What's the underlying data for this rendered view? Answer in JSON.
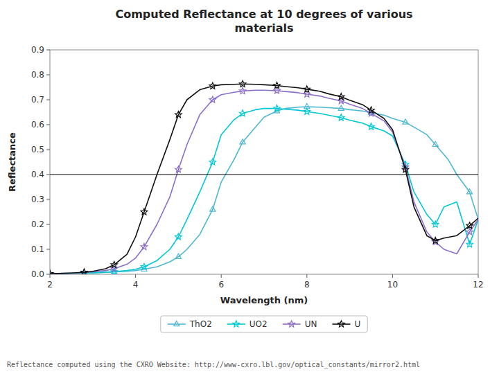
{
  "chart_data": {
    "type": "line",
    "title": "Computed Reflectance at 10 degrees of various\nmaterials",
    "x_label": "Wavelength (nm)",
    "y_label": "Reflectance",
    "xlim": [
      2,
      12
    ],
    "ylim": [
      0,
      0.9
    ],
    "xticks": [
      2,
      4,
      6,
      8,
      10,
      12
    ],
    "yticks": [
      {
        "value": 0,
        "label": "0.0"
      },
      0.1,
      0.2,
      0.3,
      0.4,
      0.5,
      0.6,
      0.7,
      0.8,
      0.9
    ],
    "grid": false,
    "legend": "bottom",
    "hlines": [
      0.4
    ],
    "annotations": [
      "Reflectance computed using the CXRO Website: http://www-cxro.lbl.gov/optical_constants/mirror2.html"
    ],
    "series": [
      {
        "name": "ThO2",
        "color": "#4db8d4",
        "marker": "triangle",
        "x": [
          2.0,
          2.2,
          2.5,
          2.8,
          3.0,
          3.3,
          3.5,
          3.8,
          4.0,
          4.2,
          4.5,
          4.8,
          5.0,
          5.2,
          5.5,
          5.8,
          6.0,
          6.3,
          6.5,
          6.8,
          7.0,
          7.3,
          7.5,
          7.8,
          8.0,
          8.3,
          8.5,
          8.8,
          9.0,
          9.3,
          9.5,
          9.8,
          10.0,
          10.3,
          10.5,
          10.8,
          11.0,
          11.3,
          11.5,
          11.8,
          12.0
        ],
        "values": [
          0.002,
          0.003,
          0.004,
          0.005,
          0.006,
          0.008,
          0.01,
          0.012,
          0.015,
          0.02,
          0.03,
          0.05,
          0.07,
          0.1,
          0.16,
          0.26,
          0.37,
          0.46,
          0.53,
          0.59,
          0.63,
          0.655,
          0.665,
          0.67,
          0.672,
          0.67,
          0.668,
          0.665,
          0.66,
          0.655,
          0.648,
          0.638,
          0.625,
          0.61,
          0.59,
          0.56,
          0.52,
          0.46,
          0.4,
          0.33,
          0.22
        ]
      },
      {
        "name": "UO2",
        "color": "#00c8d4",
        "marker": "star",
        "x": [
          2.0,
          2.2,
          2.5,
          2.8,
          3.0,
          3.3,
          3.5,
          3.8,
          4.0,
          4.2,
          4.5,
          4.8,
          5.0,
          5.2,
          5.5,
          5.8,
          6.0,
          6.3,
          6.5,
          6.8,
          7.0,
          7.3,
          7.5,
          7.8,
          8.0,
          8.3,
          8.5,
          8.8,
          9.0,
          9.3,
          9.5,
          9.8,
          10.0,
          10.3,
          10.5,
          10.8,
          11.0,
          11.2,
          11.5,
          11.8,
          12.0
        ],
        "values": [
          0.002,
          0.003,
          0.004,
          0.005,
          0.006,
          0.008,
          0.01,
          0.015,
          0.02,
          0.03,
          0.055,
          0.1,
          0.15,
          0.22,
          0.33,
          0.45,
          0.56,
          0.62,
          0.645,
          0.66,
          0.665,
          0.665,
          0.662,
          0.658,
          0.652,
          0.645,
          0.638,
          0.628,
          0.618,
          0.606,
          0.592,
          0.575,
          0.555,
          0.44,
          0.33,
          0.24,
          0.2,
          0.27,
          0.29,
          0.12,
          0.22
        ]
      },
      {
        "name": "UN",
        "color": "#8b6fc8",
        "marker": "star",
        "x": [
          2.0,
          2.2,
          2.5,
          2.8,
          3.0,
          3.3,
          3.5,
          3.8,
          4.0,
          4.2,
          4.5,
          4.8,
          5.0,
          5.2,
          5.5,
          5.8,
          6.0,
          6.3,
          6.5,
          6.8,
          7.0,
          7.3,
          7.5,
          7.8,
          8.0,
          8.3,
          8.5,
          8.8,
          9.0,
          9.3,
          9.5,
          9.8,
          10.0,
          10.3,
          10.5,
          10.8,
          11.0,
          11.2,
          11.5,
          11.8,
          12.0
        ],
        "values": [
          0.002,
          0.003,
          0.005,
          0.007,
          0.01,
          0.015,
          0.022,
          0.04,
          0.065,
          0.11,
          0.2,
          0.31,
          0.42,
          0.52,
          0.64,
          0.7,
          0.72,
          0.73,
          0.735,
          0.738,
          0.738,
          0.736,
          0.733,
          0.728,
          0.722,
          0.715,
          0.706,
          0.695,
          0.682,
          0.665,
          0.645,
          0.615,
          0.57,
          0.43,
          0.29,
          0.17,
          0.13,
          0.1,
          0.082,
          0.17,
          0.22
        ]
      },
      {
        "name": "U",
        "color": "#101010",
        "marker": "star",
        "x": [
          2.0,
          2.2,
          2.5,
          2.8,
          3.0,
          3.3,
          3.5,
          3.8,
          4.0,
          4.2,
          4.5,
          4.8,
          5.0,
          5.2,
          5.5,
          5.8,
          6.0,
          6.3,
          6.5,
          6.8,
          7.0,
          7.3,
          7.5,
          7.8,
          8.0,
          8.3,
          8.5,
          8.8,
          9.0,
          9.3,
          9.5,
          9.8,
          10.0,
          10.3,
          10.5,
          10.8,
          11.0,
          11.2,
          11.5,
          11.8,
          12.0
        ],
        "values": [
          0.002,
          0.003,
          0.005,
          0.008,
          0.012,
          0.022,
          0.038,
          0.08,
          0.15,
          0.25,
          0.4,
          0.54,
          0.64,
          0.7,
          0.74,
          0.755,
          0.76,
          0.762,
          0.763,
          0.762,
          0.76,
          0.757,
          0.753,
          0.748,
          0.742,
          0.734,
          0.724,
          0.712,
          0.698,
          0.68,
          0.658,
          0.625,
          0.58,
          0.42,
          0.27,
          0.155,
          0.135,
          0.145,
          0.155,
          0.195,
          0.225
        ]
      }
    ]
  }
}
